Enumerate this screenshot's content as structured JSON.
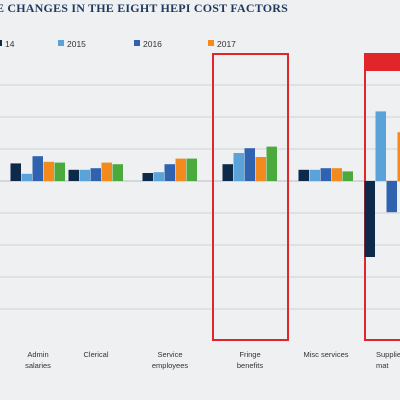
{
  "chart_data": {
    "type": "bar",
    "title": "E CHANGES IN THE EIGHT HEPI COST FACTORS",
    "legend_position": "top",
    "grid": true,
    "series": [
      {
        "name": "14",
        "color": "#0e2a4a",
        "values": [
          2.2,
          1.4,
          1.0,
          2.1,
          1.4,
          -9.5
        ]
      },
      {
        "name": "2015",
        "color": "#5aa3d8",
        "values": [
          0.9,
          1.4,
          1.1,
          3.5,
          1.4,
          8.7
        ]
      },
      {
        "name": "2016",
        "color": "#2f63b0",
        "values": [
          3.1,
          1.6,
          2.1,
          4.1,
          1.6,
          -3.9
        ]
      },
      {
        "name": "2017",
        "color": "#f28a1e",
        "values": [
          2.4,
          2.3,
          2.8,
          3.0,
          1.6,
          6.1
        ]
      },
      {
        "name": "",
        "color": "#4caa3c",
        "values": [
          2.3,
          2.1,
          2.8,
          4.3,
          1.2,
          null
        ]
      }
    ],
    "legend": [
      "14",
      "2015",
      "2016",
      "2017"
    ],
    "categories": [
      {
        "lines": [
          "Admin",
          "salaries"
        ]
      },
      {
        "lines": [
          "Clerical"
        ]
      },
      {
        "lines": [
          "Service",
          "employees"
        ]
      },
      {
        "lines": [
          "Fringe",
          "benefits"
        ]
      },
      {
        "lines": [
          "Misc services"
        ]
      },
      {
        "lines": [
          "Supplie",
          "mat"
        ]
      }
    ],
    "ylim": [
      -16,
      12
    ],
    "gridlines": [
      -16,
      -12,
      -8,
      -4,
      0,
      4,
      8,
      12
    ],
    "highlighted_categories": [
      3,
      5
    ],
    "highlight_color": "#e0262b"
  }
}
